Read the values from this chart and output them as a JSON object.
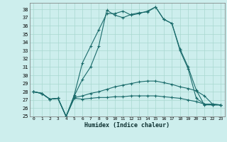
{
  "xlabel": "Humidex (Indice chaleur)",
  "xlim": [
    -0.5,
    23.5
  ],
  "ylim": [
    25,
    38.8
  ],
  "yticks": [
    25,
    26,
    27,
    28,
    29,
    30,
    31,
    32,
    33,
    34,
    35,
    36,
    37,
    38
  ],
  "xticks": [
    0,
    1,
    2,
    3,
    4,
    5,
    6,
    7,
    8,
    9,
    10,
    11,
    12,
    13,
    14,
    15,
    16,
    17,
    18,
    19,
    20,
    21,
    22,
    23
  ],
  "background_color": "#cdeeed",
  "grid_color": "#a8d8d0",
  "line_color": "#1a6b6b",
  "line1_y": [
    28.0,
    27.8,
    27.1,
    27.2,
    25.0,
    27.2,
    27.1,
    27.2,
    27.3,
    27.3,
    27.4,
    27.4,
    27.5,
    27.5,
    27.5,
    27.5,
    27.4,
    27.3,
    27.2,
    27.0,
    26.8,
    26.5,
    26.5,
    26.4
  ],
  "line2_y": [
    28.0,
    27.8,
    27.1,
    27.2,
    25.0,
    27.3,
    27.5,
    27.8,
    28.0,
    28.3,
    28.6,
    28.8,
    29.0,
    29.2,
    29.3,
    29.3,
    29.1,
    28.9,
    28.6,
    28.4,
    28.1,
    27.5,
    26.5,
    26.4
  ],
  "line3_y": [
    28.0,
    27.8,
    27.1,
    27.2,
    25.0,
    27.5,
    29.5,
    31.0,
    33.5,
    37.9,
    37.3,
    37.0,
    37.4,
    37.6,
    37.7,
    38.3,
    36.8,
    36.3,
    33.0,
    30.8,
    27.2,
    26.5,
    26.4,
    26.4
  ],
  "line4_y": [
    28.0,
    27.8,
    27.1,
    27.2,
    25.0,
    27.6,
    31.5,
    33.5,
    35.5,
    37.5,
    37.5,
    37.8,
    37.3,
    37.5,
    37.8,
    38.3,
    36.8,
    36.3,
    33.2,
    31.0,
    28.2,
    26.4,
    26.4,
    26.4
  ]
}
